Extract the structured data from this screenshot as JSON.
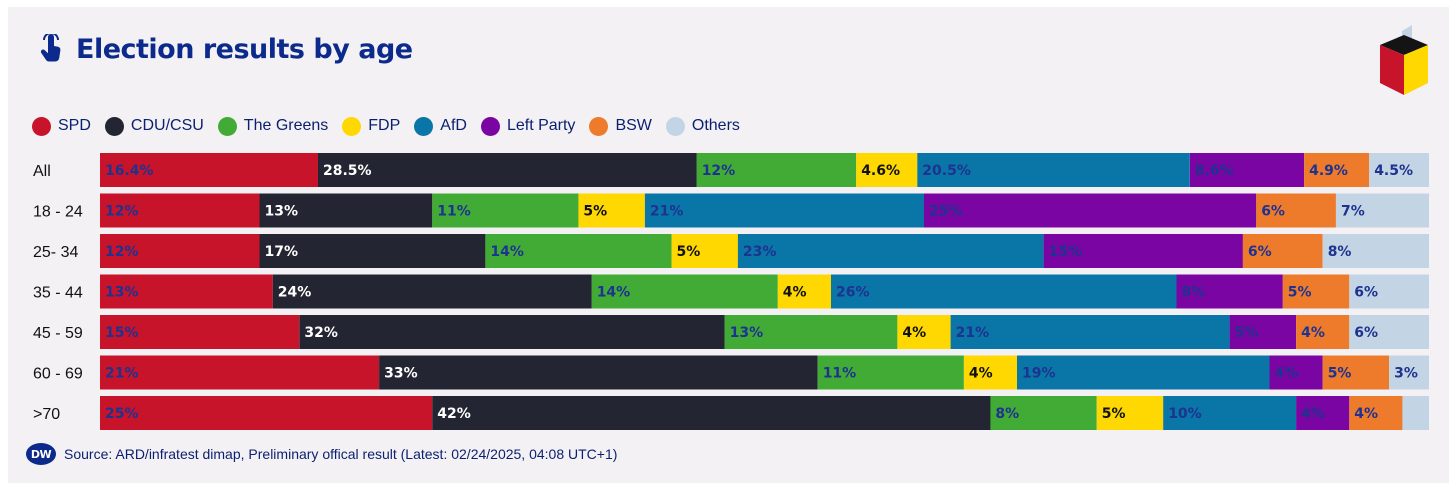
{
  "header": {
    "title": "Election results by age",
    "title_icon": "hand-pointer-icon",
    "brand_icon": "ballot-box-icon"
  },
  "footer": {
    "logo_text": "DW",
    "source": "Source: ARD/infratest dimap, Preliminary offical result (Latest: 02/24/2025, 04:08 UTC+1)"
  },
  "chart_data": {
    "type": "bar",
    "orientation": "horizontal",
    "stacked": true,
    "title": "Election results by age",
    "legend_position": "top-left",
    "grid": false,
    "categories": [
      "All",
      "18 - 24",
      "25- 34",
      "35 - 44",
      "45 - 59",
      "60 - 69",
      ">70"
    ],
    "series": [
      {
        "name": "SPD",
        "color": "#c8142b",
        "label_color": "#1e3290",
        "values": [
          16.4,
          12,
          12,
          13,
          15,
          21,
          25
        ],
        "labels": [
          "16.4%",
          "12%",
          "12%",
          "13%",
          "15%",
          "21%",
          "25%"
        ]
      },
      {
        "name": "CDU/CSU",
        "color": "#232632",
        "label_color": "#ffffff",
        "values": [
          28.5,
          13,
          17,
          24,
          32,
          33,
          42
        ],
        "labels": [
          "28.5%",
          "13%",
          "17%",
          "24%",
          "32%",
          "33%",
          "42%"
        ]
      },
      {
        "name": "The Greens",
        "color": "#41ab35",
        "label_color": "#1e3290",
        "values": [
          12,
          11,
          14,
          14,
          13,
          11,
          8
        ],
        "labels": [
          "12%",
          "11%",
          "14%",
          "14%",
          "13%",
          "11%",
          "8%"
        ]
      },
      {
        "name": "FDP",
        "color": "#fed800",
        "label_color": "#111111",
        "values": [
          4.6,
          5,
          5,
          4,
          4,
          4,
          5
        ],
        "labels": [
          "4.6%",
          "5%",
          "5%",
          "4%",
          "4%",
          "4%",
          "5%"
        ]
      },
      {
        "name": "AfD",
        "color": "#0a75a7",
        "label_color": "#1e3290",
        "values": [
          20.5,
          21,
          23,
          26,
          21,
          19,
          10
        ],
        "labels": [
          "20.5%",
          "21%",
          "23%",
          "26%",
          "21%",
          "19%",
          "10%"
        ]
      },
      {
        "name": "Left Party",
        "color": "#7b05a2",
        "label_color": "#1e3290",
        "values": [
          8.6,
          25,
          15,
          8,
          5,
          4,
          4
        ],
        "labels": [
          "8.6%",
          "25%",
          "15%",
          "8%",
          "5%",
          "4%",
          "4%"
        ]
      },
      {
        "name": "BSW",
        "color": "#ee7b2c",
        "label_color": "#1e3290",
        "values": [
          4.9,
          6,
          6,
          5,
          4,
          5,
          4
        ],
        "labels": [
          "4.9%",
          "6%",
          "6%",
          "5%",
          "4%",
          "5%",
          "4%"
        ]
      },
      {
        "name": "Others",
        "color": "#c3d5e4",
        "label_color": "#1e3290",
        "values": [
          4.5,
          7,
          8,
          6,
          6,
          3,
          2
        ],
        "labels": [
          "4.5%",
          "7%",
          "8%",
          "6%",
          "6%",
          "3%",
          ""
        ]
      }
    ],
    "xlim": [
      0,
      100
    ]
  }
}
